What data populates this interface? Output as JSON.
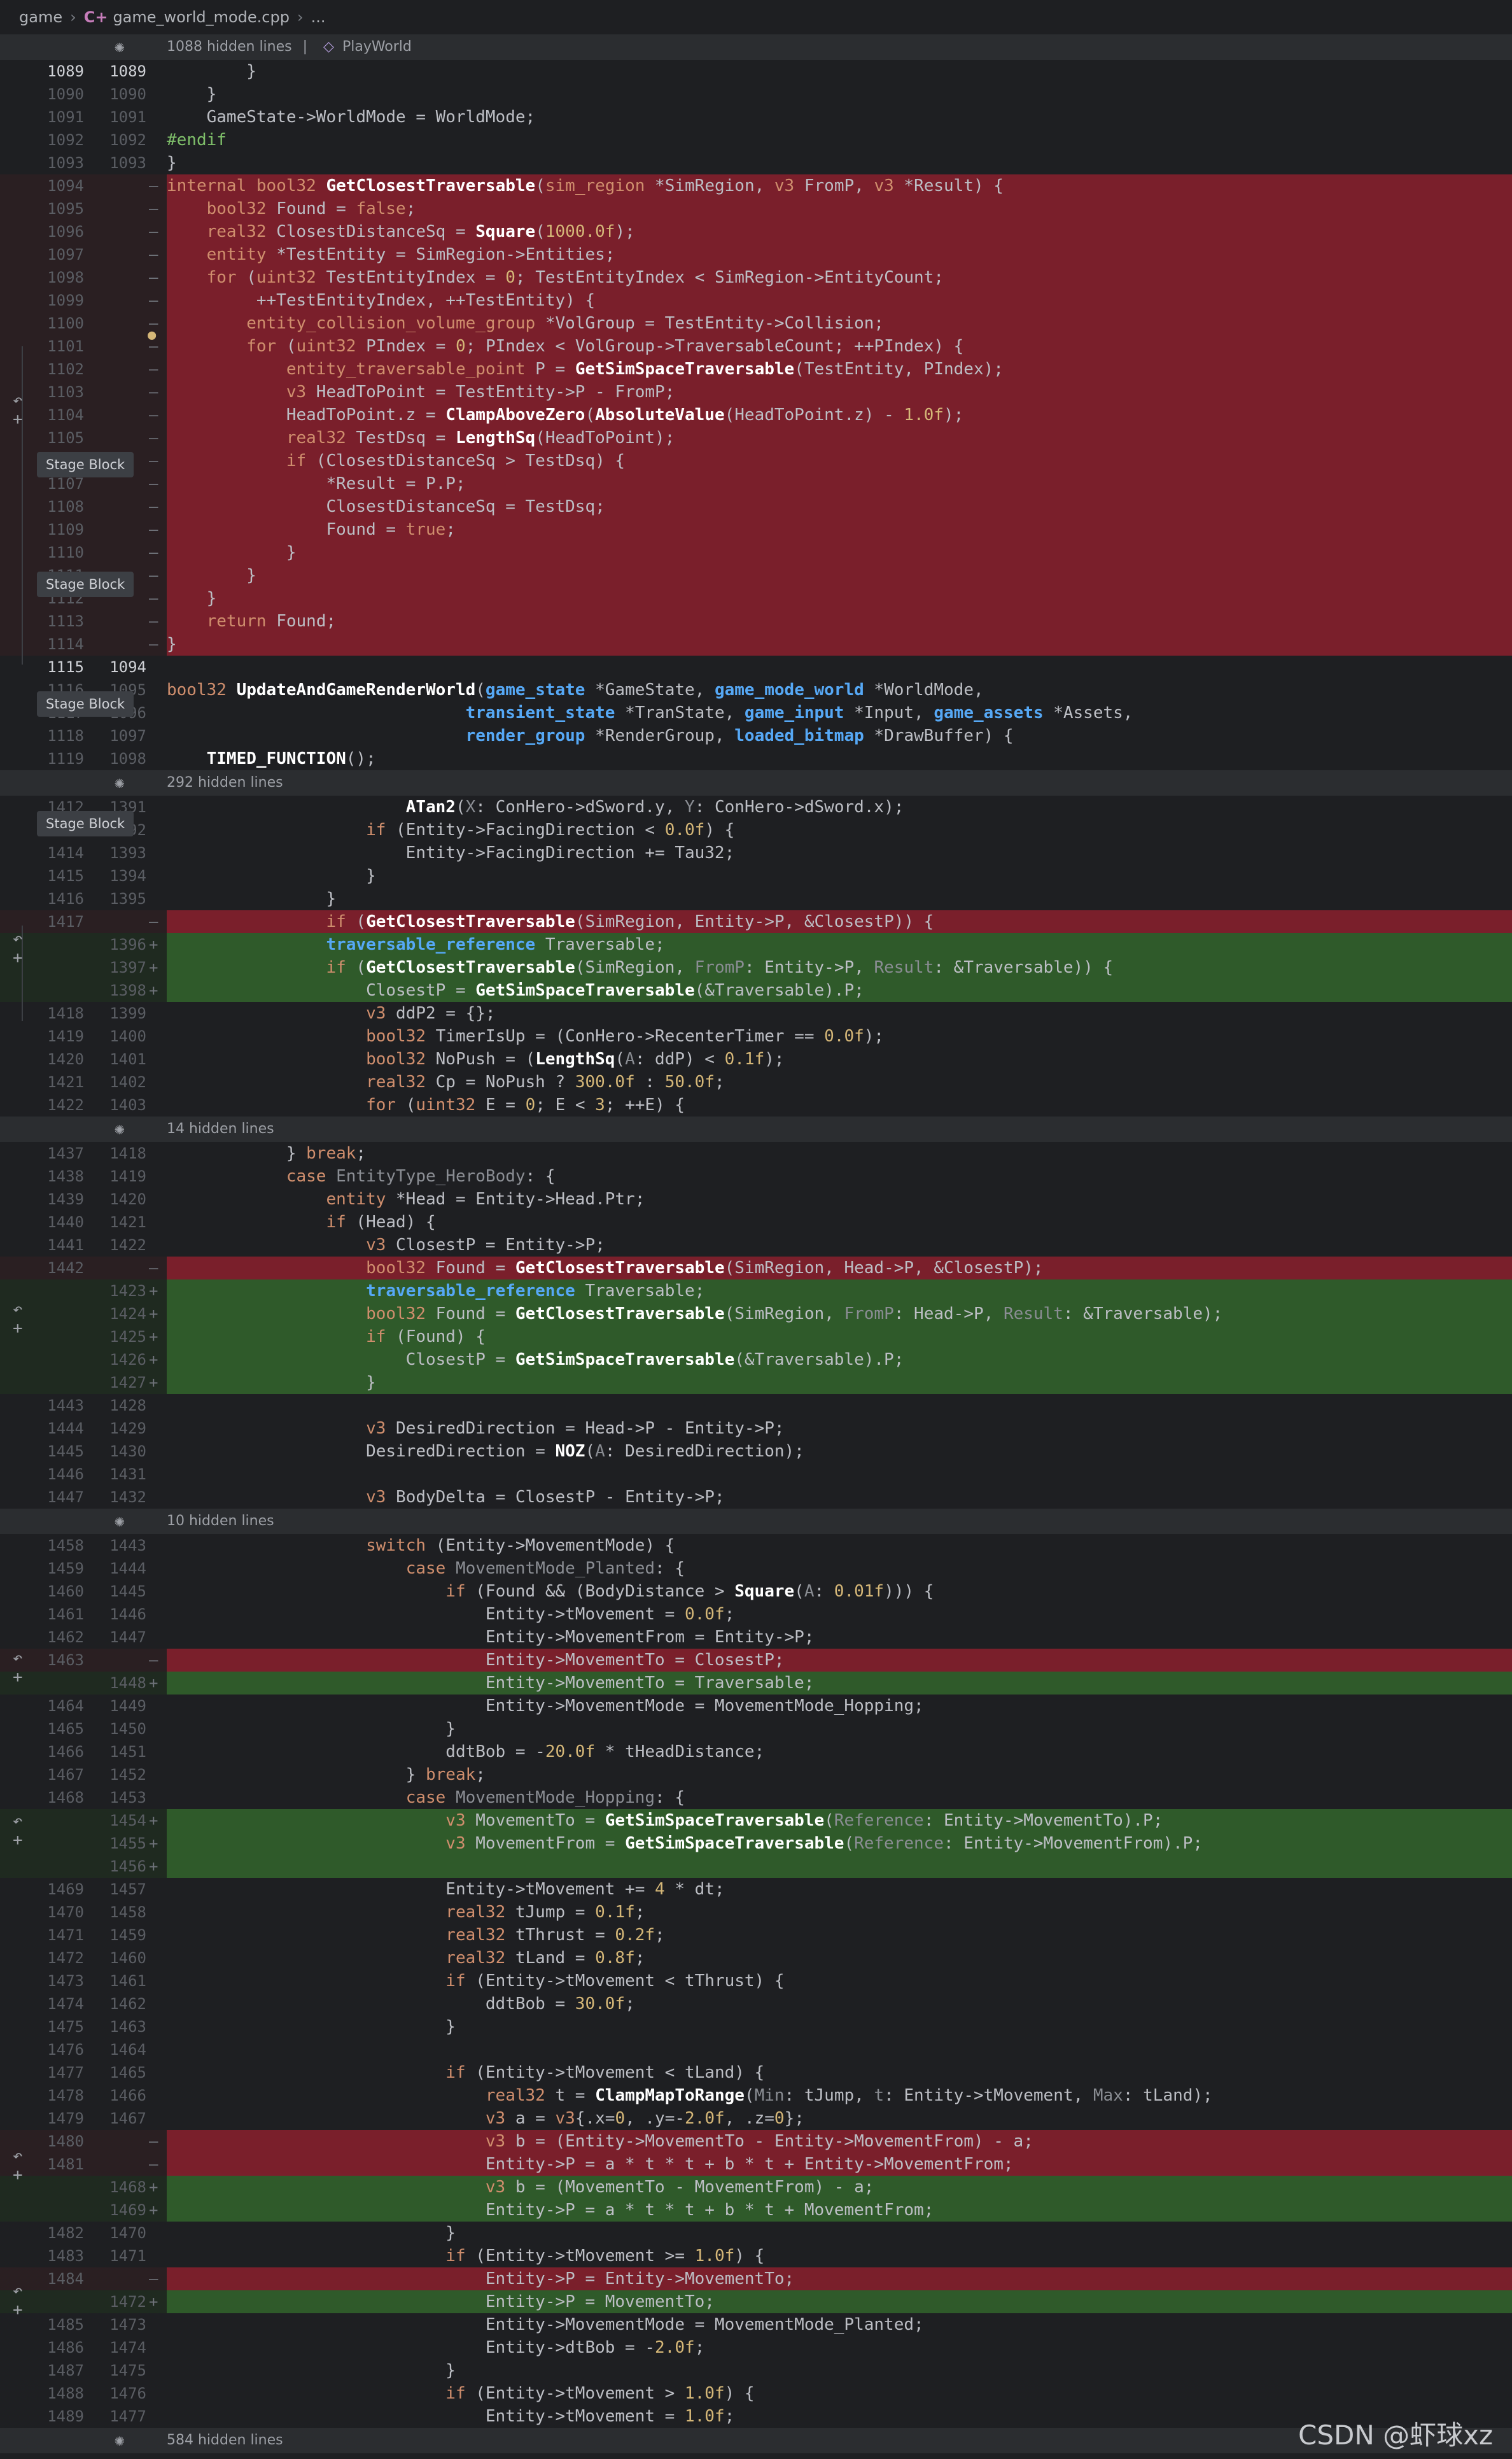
{
  "breadcrumb": {
    "root": "game",
    "file": "game_world_mode.cpp",
    "more": "..."
  },
  "folds": {
    "f1": {
      "label": "1088 hidden lines",
      "context_sep": "|",
      "context": "PlayWorld"
    },
    "f2": {
      "label": "292 hidden lines"
    },
    "f3": {
      "label": "14 hidden lines"
    },
    "f4": {
      "label": "10 hidden lines"
    },
    "f5": {
      "label": "584 hidden lines"
    }
  },
  "badges": {
    "stage_block": "Stage Block"
  },
  "watermark": "CSDN @虾球xz",
  "lines": [
    {
      "o": "1089",
      "n": "1089",
      "cur": true,
      "t": "",
      "c": "        }"
    },
    {
      "o": "1090",
      "n": "1090",
      "t": "",
      "c": "    }"
    },
    {
      "o": "1091",
      "n": "1091",
      "t": "",
      "c": "    GameState->WorldMode = WorldMode;"
    },
    {
      "o": "1092",
      "n": "1092",
      "t": "",
      "c": "#endif"
    },
    {
      "o": "1093",
      "n": "1093",
      "t": "",
      "c": "}"
    },
    {
      "o": "1094",
      "n": "",
      "t": "del",
      "c": "internal bool32 GetClosestTraversable(sim_region *SimRegion, v3 FromP, v3 *Result) {"
    },
    {
      "o": "1095",
      "n": "",
      "t": "del",
      "c": "    bool32 Found = false;"
    },
    {
      "o": "1096",
      "n": "",
      "t": "del",
      "c": "    real32 ClosestDistanceSq = Square(1000.0f);"
    },
    {
      "o": "1097",
      "n": "",
      "t": "del",
      "c": "    entity *TestEntity = SimRegion->Entities;"
    },
    {
      "o": "1098",
      "n": "",
      "t": "del",
      "c": "    for (uint32 TestEntityIndex = 0; TestEntityIndex < SimRegion->EntityCount;"
    },
    {
      "o": "1099",
      "n": "",
      "t": "del",
      "c": "         ++TestEntityIndex, ++TestEntity) {"
    },
    {
      "o": "1100",
      "n": "",
      "t": "del",
      "c": "        entity_collision_volume_group *VolGroup = TestEntity->Collision;"
    },
    {
      "o": "1101",
      "n": "",
      "t": "del",
      "c": "        for (uint32 PIndex = 0; PIndex < VolGroup->TraversableCount; ++PIndex) {"
    },
    {
      "o": "1102",
      "n": "",
      "t": "del",
      "c": "            entity_traversable_point P = GetSimSpaceTraversable(TestEntity, PIndex);"
    },
    {
      "o": "1103",
      "n": "",
      "t": "del",
      "c": "            v3 HeadToPoint = TestEntity->P - FromP;"
    },
    {
      "o": "1104",
      "n": "",
      "t": "del",
      "c": "            HeadToPoint.z = ClampAboveZero(AbsoluteValue(HeadToPoint.z) - 1.0f);"
    },
    {
      "o": "1105",
      "n": "",
      "t": "del",
      "c": "            real32 TestDsq = LengthSq(HeadToPoint);"
    },
    {
      "o": "1106",
      "n": "",
      "t": "del",
      "c": "            if (ClosestDistanceSq > TestDsq) {"
    },
    {
      "o": "1107",
      "n": "",
      "t": "del",
      "c": "                *Result = P.P;"
    },
    {
      "o": "1108",
      "n": "",
      "t": "del",
      "c": "                ClosestDistanceSq = TestDsq;"
    },
    {
      "o": "1109",
      "n": "",
      "t": "del",
      "c": "                Found = true;"
    },
    {
      "o": "1110",
      "n": "",
      "t": "del",
      "c": "            }"
    },
    {
      "o": "1111",
      "n": "",
      "t": "del",
      "c": "        }"
    },
    {
      "o": "1112",
      "n": "",
      "t": "del",
      "c": "    }"
    },
    {
      "o": "1113",
      "n": "",
      "t": "del",
      "c": "    return Found;"
    },
    {
      "o": "1114",
      "n": "",
      "t": "del",
      "c": "}"
    },
    {
      "o": "1115",
      "n": "1094",
      "cur": true,
      "t": "",
      "c": ""
    },
    {
      "o": "1116",
      "n": "1095",
      "t": "",
      "c": "bool32 UpdateAndGameRenderWorld(game_state *GameState, game_mode_world *WorldMode,"
    },
    {
      "o": "1117",
      "n": "1096",
      "t": "",
      "c": "                              transient_state *TranState, game_input *Input, game_assets *Assets,"
    },
    {
      "o": "1118",
      "n": "1097",
      "t": "",
      "c": "                              render_group *RenderGroup, loaded_bitmap *DrawBuffer) {"
    },
    {
      "o": "1119",
      "n": "1098",
      "t": "",
      "c": "    TIMED_FUNCTION();"
    },
    {
      "fold": "f2"
    },
    {
      "o": "1412",
      "n": "1391",
      "t": "",
      "c": "                        ATan2(X: ConHero->dSword.y, Y: ConHero->dSword.x);"
    },
    {
      "o": "1413",
      "n": "1392",
      "t": "",
      "c": "                    if (Entity->FacingDirection < 0.0f) {"
    },
    {
      "o": "1414",
      "n": "1393",
      "t": "",
      "c": "                        Entity->FacingDirection += Tau32;"
    },
    {
      "o": "1415",
      "n": "1394",
      "t": "",
      "c": "                    }"
    },
    {
      "o": "1416",
      "n": "1395",
      "t": "",
      "c": "                }"
    },
    {
      "o": "1417",
      "n": "",
      "t": "del",
      "c": "                if (GetClosestTraversable(SimRegion, Entity->P, &ClosestP)) {"
    },
    {
      "o": "",
      "n": "1396",
      "t": "add",
      "c": "                traversable_reference Traversable;"
    },
    {
      "o": "",
      "n": "1397",
      "t": "add",
      "c": "                if (GetClosestTraversable(SimRegion, FromP: Entity->P, Result: &Traversable)) {"
    },
    {
      "o": "",
      "n": "1398",
      "t": "add",
      "c": "                    ClosestP = GetSimSpaceTraversable(&Traversable).P;"
    },
    {
      "o": "1418",
      "n": "1399",
      "t": "",
      "c": "                    v3 ddP2 = {};"
    },
    {
      "o": "1419",
      "n": "1400",
      "t": "",
      "c": "                    bool32 TimerIsUp = (ConHero->RecenterTimer == 0.0f);"
    },
    {
      "o": "1420",
      "n": "1401",
      "t": "",
      "c": "                    bool32 NoPush = (LengthSq(A: ddP) < 0.1f);"
    },
    {
      "o": "1421",
      "n": "1402",
      "t": "",
      "c": "                    real32 Cp = NoPush ? 300.0f : 50.0f;"
    },
    {
      "o": "1422",
      "n": "1403",
      "t": "",
      "c": "                    for (uint32 E = 0; E < 3; ++E) {"
    },
    {
      "fold": "f3"
    },
    {
      "o": "1437",
      "n": "1418",
      "t": "",
      "c": "            } break;"
    },
    {
      "o": "1438",
      "n": "1419",
      "t": "",
      "c": "            case EntityType_HeroBody: {"
    },
    {
      "o": "1439",
      "n": "1420",
      "t": "",
      "c": "                entity *Head = Entity->Head.Ptr;"
    },
    {
      "o": "1440",
      "n": "1421",
      "t": "",
      "c": "                if (Head) {"
    },
    {
      "o": "1441",
      "n": "1422",
      "t": "",
      "c": "                    v3 ClosestP = Entity->P;"
    },
    {
      "o": "1442",
      "n": "",
      "t": "del",
      "c": "                    bool32 Found = GetClosestTraversable(SimRegion, Head->P, &ClosestP);"
    },
    {
      "o": "",
      "n": "1423",
      "t": "add",
      "c": "                    traversable_reference Traversable;"
    },
    {
      "o": "",
      "n": "1424",
      "t": "add",
      "c": "                    bool32 Found = GetClosestTraversable(SimRegion, FromP: Head->P, Result: &Traversable);"
    },
    {
      "o": "",
      "n": "1425",
      "t": "add",
      "c": "                    if (Found) {"
    },
    {
      "o": "",
      "n": "1426",
      "t": "add",
      "c": "                        ClosestP = GetSimSpaceTraversable(&Traversable).P;"
    },
    {
      "o": "",
      "n": "1427",
      "t": "add",
      "c": "                    }"
    },
    {
      "o": "1443",
      "n": "1428",
      "t": "",
      "c": ""
    },
    {
      "o": "1444",
      "n": "1429",
      "t": "",
      "c": "                    v3 DesiredDirection = Head->P - Entity->P;"
    },
    {
      "o": "1445",
      "n": "1430",
      "t": "",
      "c": "                    DesiredDirection = NOZ(A: DesiredDirection);"
    },
    {
      "o": "1446",
      "n": "1431",
      "t": "",
      "c": ""
    },
    {
      "o": "1447",
      "n": "1432",
      "t": "",
      "c": "                    v3 BodyDelta = ClosestP - Entity->P;"
    },
    {
      "fold": "f4"
    },
    {
      "o": "1458",
      "n": "1443",
      "t": "",
      "c": "                    switch (Entity->MovementMode) {"
    },
    {
      "o": "1459",
      "n": "1444",
      "t": "",
      "c": "                        case MovementMode_Planted: {"
    },
    {
      "o": "1460",
      "n": "1445",
      "t": "",
      "c": "                            if (Found && (BodyDistance > Square(A: 0.01f))) {"
    },
    {
      "o": "1461",
      "n": "1446",
      "t": "",
      "c": "                                Entity->tMovement = 0.0f;"
    },
    {
      "o": "1462",
      "n": "1447",
      "t": "",
      "c": "                                Entity->MovementFrom = Entity->P;"
    },
    {
      "o": "1463",
      "n": "",
      "t": "del",
      "c": "                                Entity->MovementTo = ClosestP;"
    },
    {
      "o": "",
      "n": "1448",
      "t": "add",
      "c": "                                Entity->MovementTo = Traversable;"
    },
    {
      "o": "1464",
      "n": "1449",
      "t": "",
      "c": "                                Entity->MovementMode = MovementMode_Hopping;"
    },
    {
      "o": "1465",
      "n": "1450",
      "t": "",
      "c": "                            }"
    },
    {
      "o": "1466",
      "n": "1451",
      "t": "",
      "c": "                            ddtBob = -20.0f * tHeadDistance;"
    },
    {
      "o": "1467",
      "n": "1452",
      "t": "",
      "c": "                        } break;"
    },
    {
      "o": "1468",
      "n": "1453",
      "t": "",
      "c": "                        case MovementMode_Hopping: {"
    },
    {
      "o": "",
      "n": "1454",
      "t": "add",
      "c": "                            v3 MovementTo = GetSimSpaceTraversable(Reference: Entity->MovementTo).P;"
    },
    {
      "o": "",
      "n": "1455",
      "t": "add",
      "c": "                            v3 MovementFrom = GetSimSpaceTraversable(Reference: Entity->MovementFrom).P;"
    },
    {
      "o": "",
      "n": "1456",
      "t": "add",
      "c": ""
    },
    {
      "o": "1469",
      "n": "1457",
      "t": "",
      "c": "                            Entity->tMovement += 4 * dt;"
    },
    {
      "o": "1470",
      "n": "1458",
      "t": "",
      "c": "                            real32 tJump = 0.1f;"
    },
    {
      "o": "1471",
      "n": "1459",
      "t": "",
      "c": "                            real32 tThrust = 0.2f;"
    },
    {
      "o": "1472",
      "n": "1460",
      "t": "",
      "c": "                            real32 tLand = 0.8f;"
    },
    {
      "o": "1473",
      "n": "1461",
      "t": "",
      "c": "                            if (Entity->tMovement < tThrust) {"
    },
    {
      "o": "1474",
      "n": "1462",
      "t": "",
      "c": "                                ddtBob = 30.0f;"
    },
    {
      "o": "1475",
      "n": "1463",
      "t": "",
      "c": "                            }"
    },
    {
      "o": "1476",
      "n": "1464",
      "t": "",
      "c": ""
    },
    {
      "o": "1477",
      "n": "1465",
      "t": "",
      "c": "                            if (Entity->tMovement < tLand) {"
    },
    {
      "o": "1478",
      "n": "1466",
      "t": "",
      "c": "                                real32 t = ClampMapToRange(Min: tJump, t: Entity->tMovement, Max: tLand);"
    },
    {
      "o": "1479",
      "n": "1467",
      "t": "",
      "c": "                                v3 a = v3{.x=0, .y=-2.0f, .z=0};"
    },
    {
      "o": "1480",
      "n": "",
      "t": "del",
      "c": "                                v3 b = (Entity->MovementTo - Entity->MovementFrom) - a;"
    },
    {
      "o": "1481",
      "n": "",
      "t": "del",
      "c": "                                Entity->P = a * t * t + b * t + Entity->MovementFrom;"
    },
    {
      "o": "",
      "n": "1468",
      "t": "add",
      "c": "                                v3 b = (MovementTo - MovementFrom) - a;"
    },
    {
      "o": "",
      "n": "1469",
      "t": "add",
      "c": "                                Entity->P = a * t * t + b * t + MovementFrom;"
    },
    {
      "o": "1482",
      "n": "1470",
      "t": "",
      "c": "                            }"
    },
    {
      "o": "1483",
      "n": "1471",
      "t": "",
      "c": "                            if (Entity->tMovement >= 1.0f) {"
    },
    {
      "o": "1484",
      "n": "",
      "t": "del",
      "c": "                                Entity->P = Entity->MovementTo;"
    },
    {
      "o": "",
      "n": "1472",
      "t": "add",
      "c": "                                Entity->P = MovementTo;"
    },
    {
      "o": "1485",
      "n": "1473",
      "t": "",
      "c": "                                Entity->MovementMode = MovementMode_Planted;"
    },
    {
      "o": "1486",
      "n": "1474",
      "t": "",
      "c": "                                Entity->dtBob = -2.0f;"
    },
    {
      "o": "1487",
      "n": "1475",
      "t": "",
      "c": "                            }"
    },
    {
      "o": "1488",
      "n": "1476",
      "t": "",
      "c": "                            if (Entity->tMovement > 1.0f) {"
    },
    {
      "o": "1489",
      "n": "1477",
      "t": "",
      "c": "                                Entity->tMovement = 1.0f;"
    },
    {
      "fold": "f5"
    }
  ]
}
